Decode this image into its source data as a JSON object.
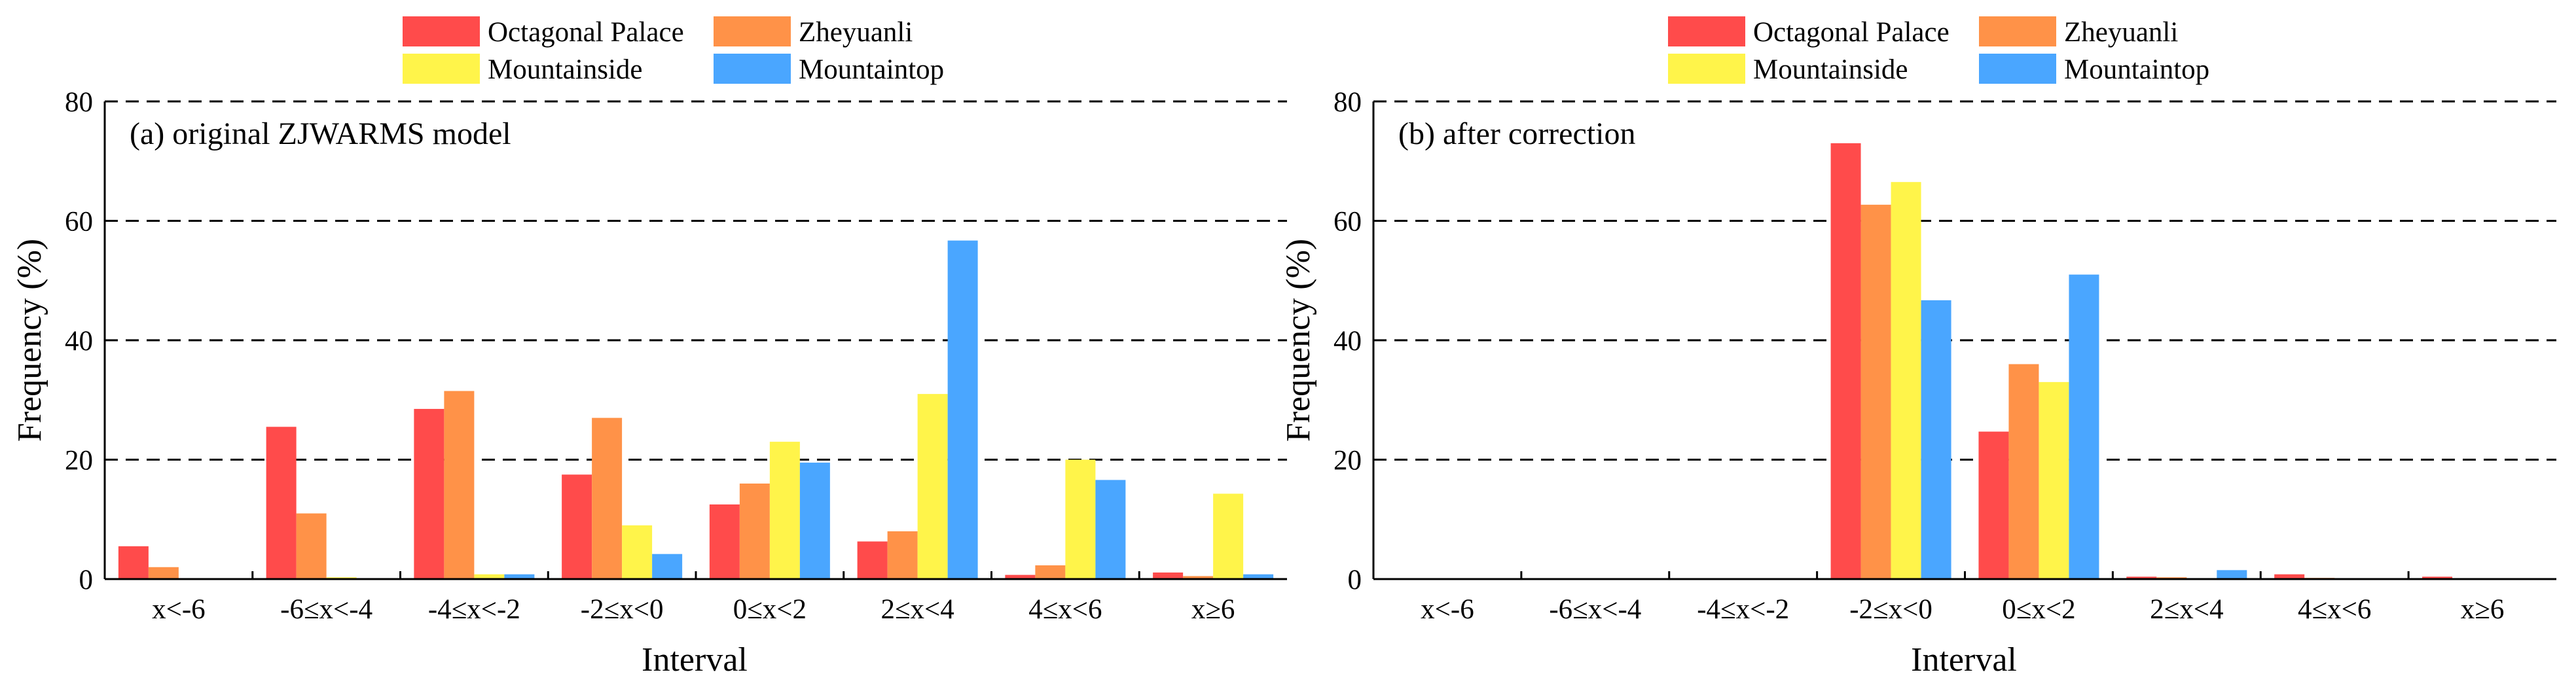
{
  "colors": {
    "Octagonal Palace": "#ff4b4b",
    "Zheyuanli": "#ff9248",
    "Mountainside": "#fff44a",
    "Mountaintop": "#4aa6ff"
  },
  "chart_data": [
    {
      "type": "bar",
      "panel_label": "(a) original ZJWARMS model",
      "xlabel": "Interval",
      "ylabel": "Frequency (%)",
      "ylim": [
        0,
        80
      ],
      "yticks": [
        0,
        20,
        40,
        60,
        80
      ],
      "grid": "horizontal dashed at 20, 40, 60, 80",
      "legend": "top, above plot, 2 columns",
      "categories": [
        "x<-6",
        "-6≤x<-4",
        "-4≤x<-2",
        "-2≤x<0",
        "0≤x<2",
        "2≤x<4",
        "4≤x<6",
        "x≥6"
      ],
      "series": [
        {
          "name": "Octagonal Palace",
          "values": [
            5.5,
            25.5,
            28.5,
            17.5,
            12.5,
            6.3,
            0.7,
            1.1
          ]
        },
        {
          "name": "Zheyuanli",
          "values": [
            2.0,
            11.0,
            31.5,
            27.0,
            16.0,
            8.0,
            2.3,
            0.5
          ]
        },
        {
          "name": "Mountainside",
          "values": [
            0,
            0.3,
            0.8,
            9.0,
            23.0,
            31.0,
            20.0,
            14.3
          ]
        },
        {
          "name": "Mountaintop",
          "values": [
            0,
            0,
            0.8,
            4.2,
            19.5,
            56.7,
            16.6,
            0.8
          ]
        }
      ]
    },
    {
      "type": "bar",
      "panel_label": "(b) after correction",
      "xlabel": "Interval",
      "ylabel": "Frequency (%)",
      "ylim": [
        0,
        80
      ],
      "yticks": [
        0,
        20,
        40,
        60,
        80
      ],
      "grid": "horizontal dashed at 20, 40, 60, 80",
      "legend": "top, above plot, 2 columns",
      "categories": [
        "x<-6",
        "-6≤x<-4",
        "-4≤x<-2",
        "-2≤x<0",
        "0≤x<2",
        "2≤x<4",
        "4≤x<6",
        "x≥6"
      ],
      "series": [
        {
          "name": "Octagonal Palace",
          "values": [
            0,
            0,
            0,
            73.0,
            24.7,
            0.4,
            0.8,
            0.4
          ]
        },
        {
          "name": "Zheyuanli",
          "values": [
            0,
            0,
            0,
            62.7,
            36.0,
            0.3,
            0.2,
            0
          ]
        },
        {
          "name": "Mountainside",
          "values": [
            0,
            0,
            0,
            66.5,
            33.0,
            0,
            0,
            0
          ]
        },
        {
          "name": "Mountaintop",
          "values": [
            0,
            0,
            0,
            46.7,
            51.0,
            1.5,
            0.1,
            0
          ]
        }
      ]
    }
  ]
}
